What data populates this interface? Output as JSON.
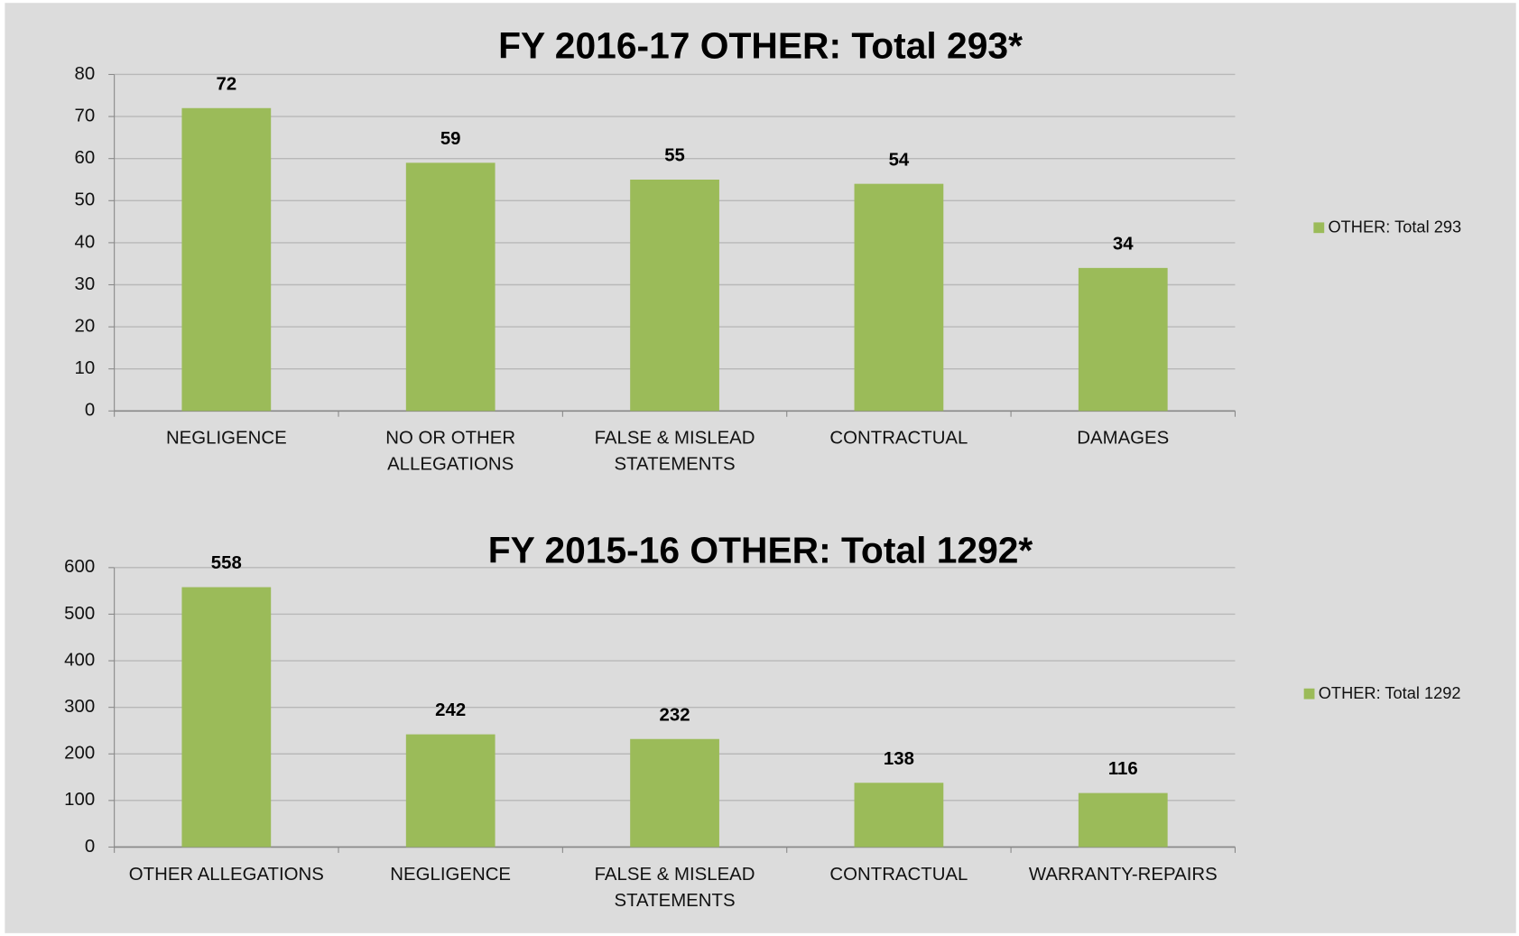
{
  "chart_data": [
    {
      "type": "bar",
      "title": "FY 2016-17 OTHER: Total 293*",
      "categories": [
        "NEGLIGENCE",
        "NO OR OTHER ALLEGATIONS",
        "FALSE & MISLEAD STATEMENTS",
        "CONTRACTUAL",
        "DAMAGES"
      ],
      "series": [
        {
          "name": "OTHER: Total 293",
          "color": "#9bbb59",
          "values": [
            72,
            59,
            55,
            54,
            34
          ]
        }
      ],
      "ylim": [
        0,
        80
      ],
      "yticks": [
        0,
        10,
        20,
        30,
        40,
        50,
        60,
        70,
        80
      ],
      "grid": true,
      "legend": "right"
    },
    {
      "type": "bar",
      "title": "FY 2015-16 OTHER: Total 1292*",
      "categories": [
        "OTHER ALLEGATIONS",
        "NEGLIGENCE",
        "FALSE & MISLEAD STATEMENTS",
        "CONTRACTUAL",
        "WARRANTY-REPAIRS"
      ],
      "series": [
        {
          "name": "OTHER: Total 1292",
          "color": "#9bbb59",
          "values": [
            558,
            242,
            232,
            138,
            116
          ]
        }
      ],
      "ylim": [
        0,
        600
      ],
      "yticks": [
        0,
        100,
        200,
        300,
        400,
        500,
        600
      ],
      "grid": true,
      "legend": "right"
    }
  ]
}
